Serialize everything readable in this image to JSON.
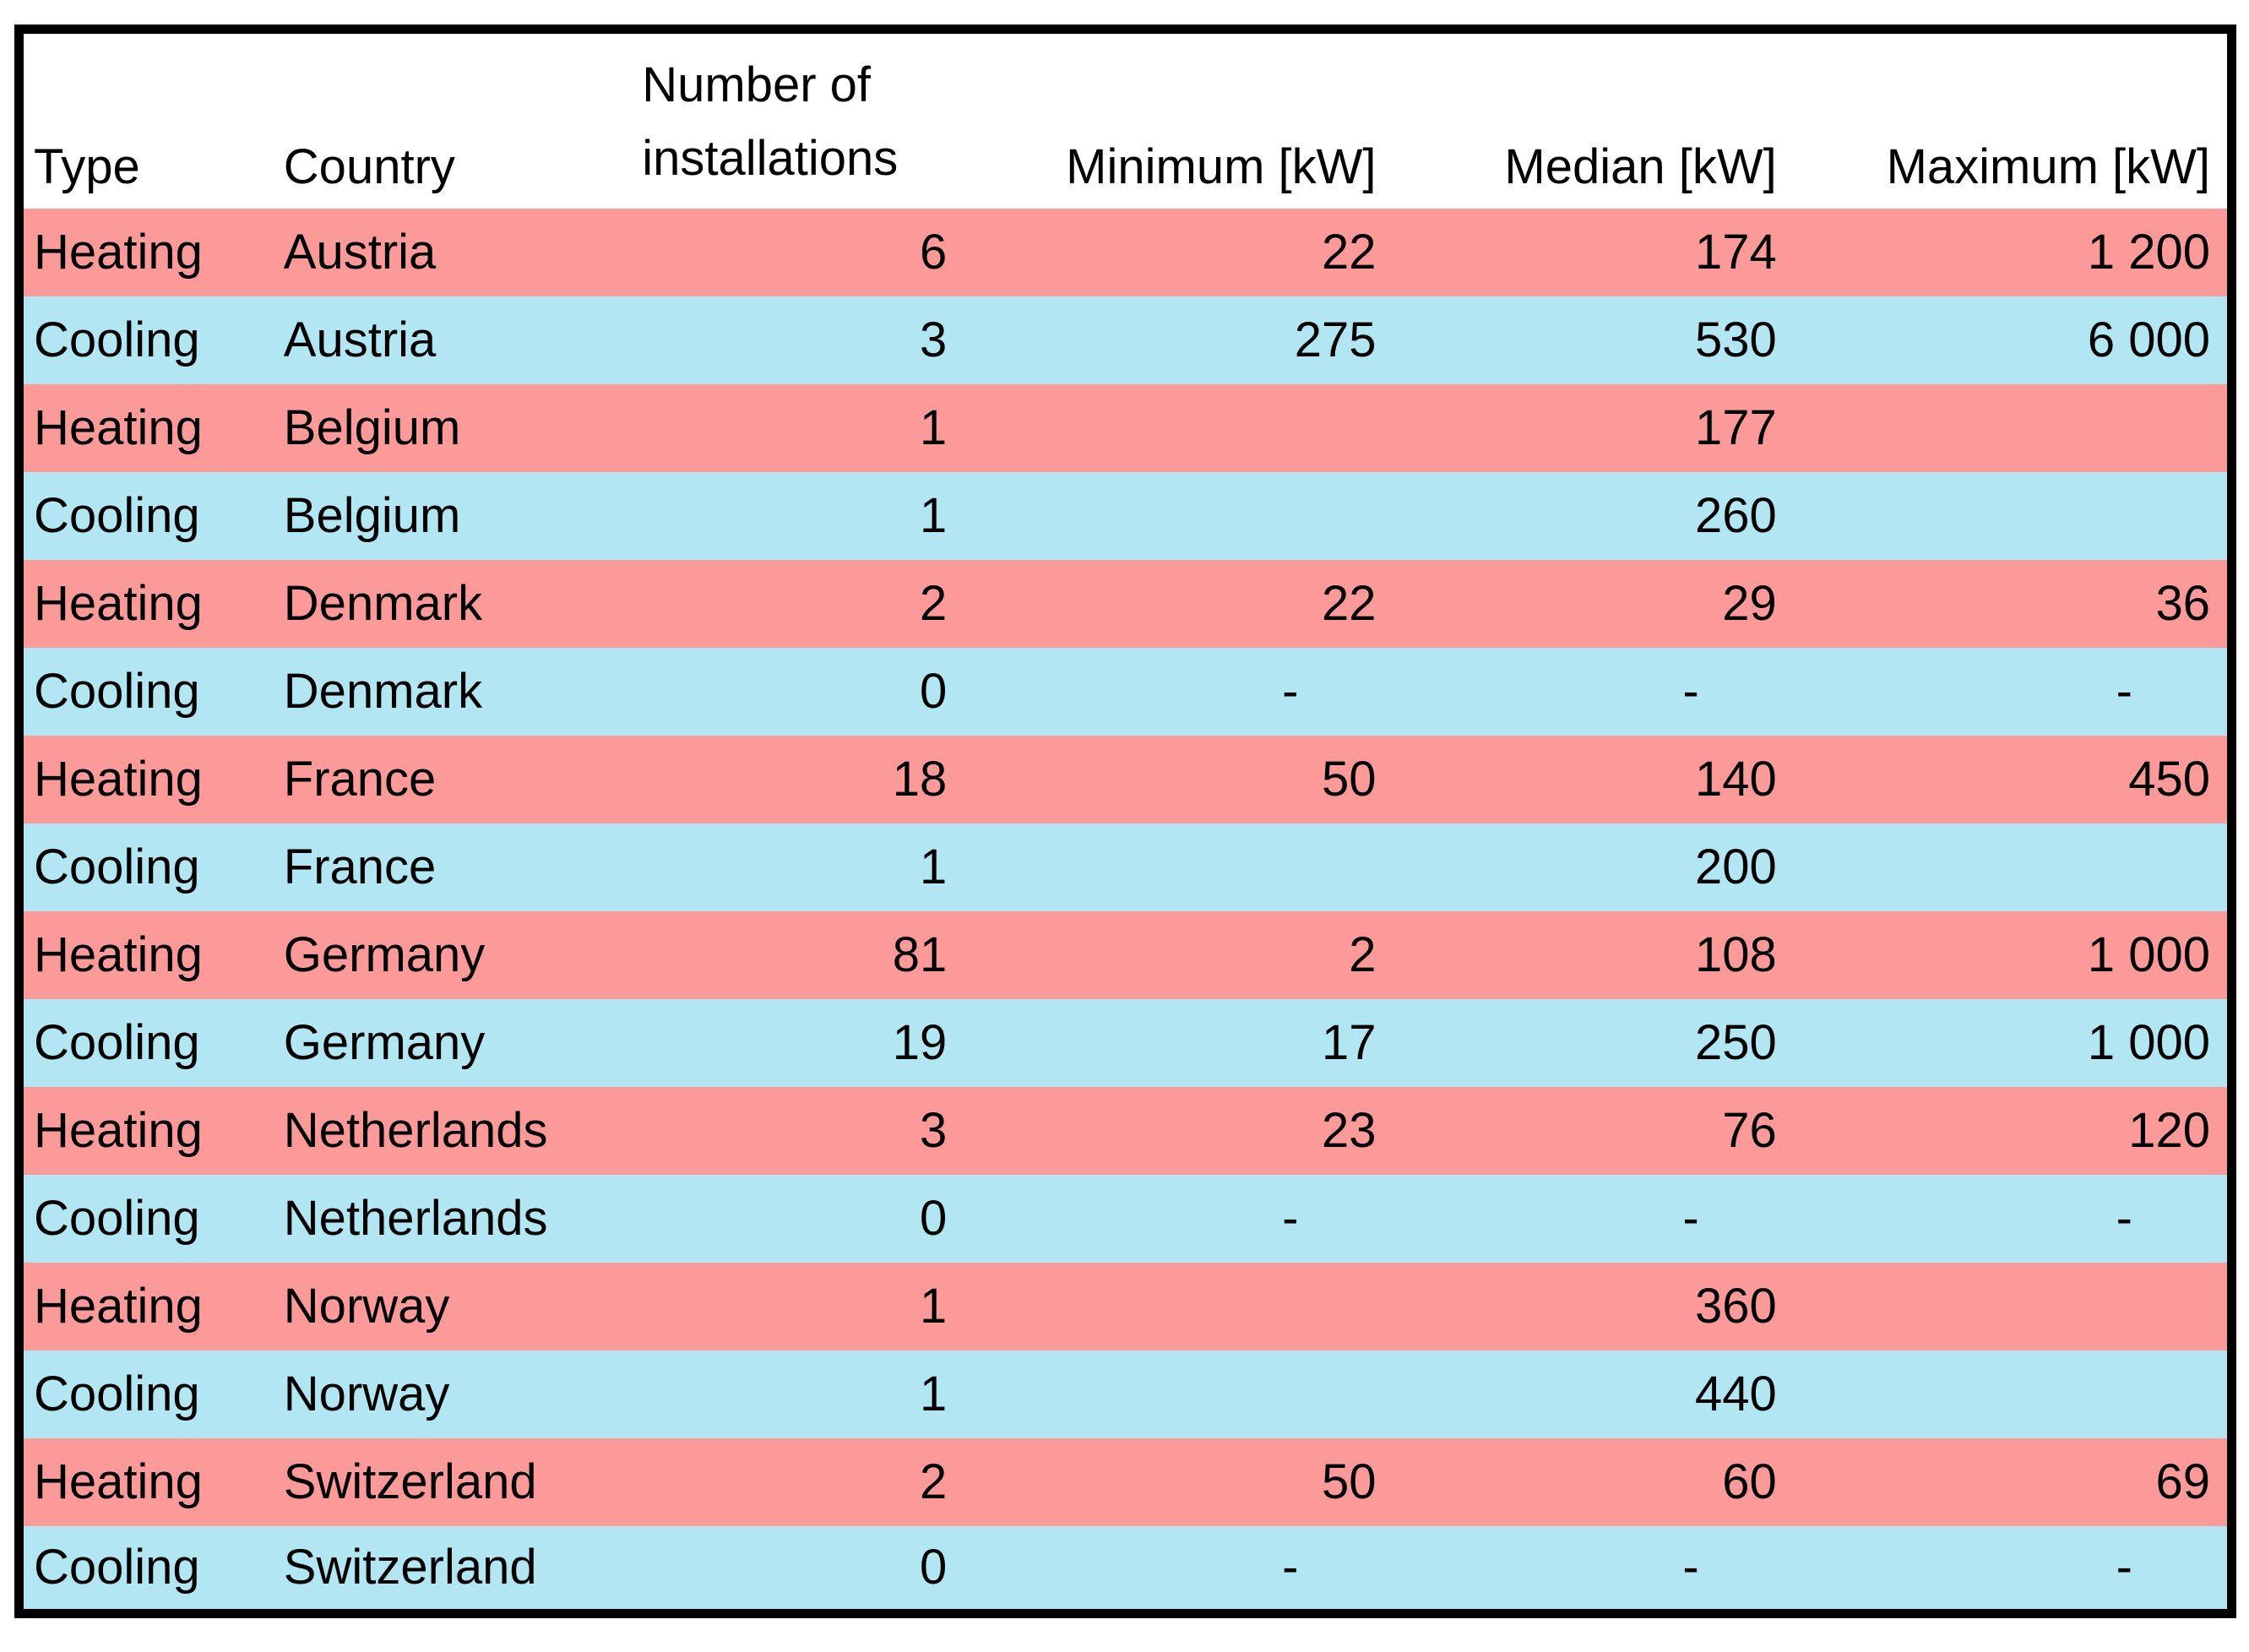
{
  "chart_data": {
    "type": "table",
    "columns": [
      "Type",
      "Country",
      "Number of installations",
      "Minimum [kW]",
      "Median [kW]",
      "Maximum [kW]"
    ],
    "rows": [
      {
        "type": "Heating",
        "country": "Austria",
        "installations": "6",
        "min": "22",
        "median": "174",
        "max": "1 200"
      },
      {
        "type": "Cooling",
        "country": "Austria",
        "installations": "3",
        "min": "275",
        "median": "530",
        "max": "6 000"
      },
      {
        "type": "Heating",
        "country": "Belgium",
        "installations": "1",
        "min": "",
        "median": "177",
        "max": ""
      },
      {
        "type": "Cooling",
        "country": "Belgium",
        "installations": "1",
        "min": "",
        "median": "260",
        "max": ""
      },
      {
        "type": "Heating",
        "country": "Denmark",
        "installations": "2",
        "min": "22",
        "median": "29",
        "max": "36"
      },
      {
        "type": "Cooling",
        "country": "Denmark",
        "installations": "0",
        "min": "-",
        "median": "-",
        "max": "-"
      },
      {
        "type": "Heating",
        "country": "France",
        "installations": "18",
        "min": "50",
        "median": "140",
        "max": "450"
      },
      {
        "type": "Cooling",
        "country": "France",
        "installations": "1",
        "min": "",
        "median": "200",
        "max": ""
      },
      {
        "type": "Heating",
        "country": "Germany",
        "installations": "81",
        "min": "2",
        "median": "108",
        "max": "1 000"
      },
      {
        "type": "Cooling",
        "country": "Germany",
        "installations": "19",
        "min": "17",
        "median": "250",
        "max": "1 000"
      },
      {
        "type": "Heating",
        "country": "Netherlands",
        "installations": "3",
        "min": "23",
        "median": "76",
        "max": "120"
      },
      {
        "type": "Cooling",
        "country": "Netherlands",
        "installations": "0",
        "min": "-",
        "median": "-",
        "max": "-"
      },
      {
        "type": "Heating",
        "country": "Norway",
        "installations": "1",
        "min": "",
        "median": "360",
        "max": ""
      },
      {
        "type": "Cooling",
        "country": "Norway",
        "installations": "1",
        "min": "",
        "median": "440",
        "max": ""
      },
      {
        "type": "Heating",
        "country": "Switzerland",
        "installations": "2",
        "min": "50",
        "median": "60",
        "max": "69"
      },
      {
        "type": "Cooling",
        "country": "Switzerland",
        "installations": "0",
        "min": "-",
        "median": "-",
        "max": "-"
      }
    ],
    "legend_semantics": {
      "heating_rows": "Heating",
      "cooling_rows": "Cooling"
    }
  },
  "colors": {
    "heating_row_bg": "#FC9A9A",
    "cooling_row_bg": "#B1E6F2",
    "header_bg": "#FFFFFF",
    "border": "#000000",
    "text": "#000000"
  }
}
